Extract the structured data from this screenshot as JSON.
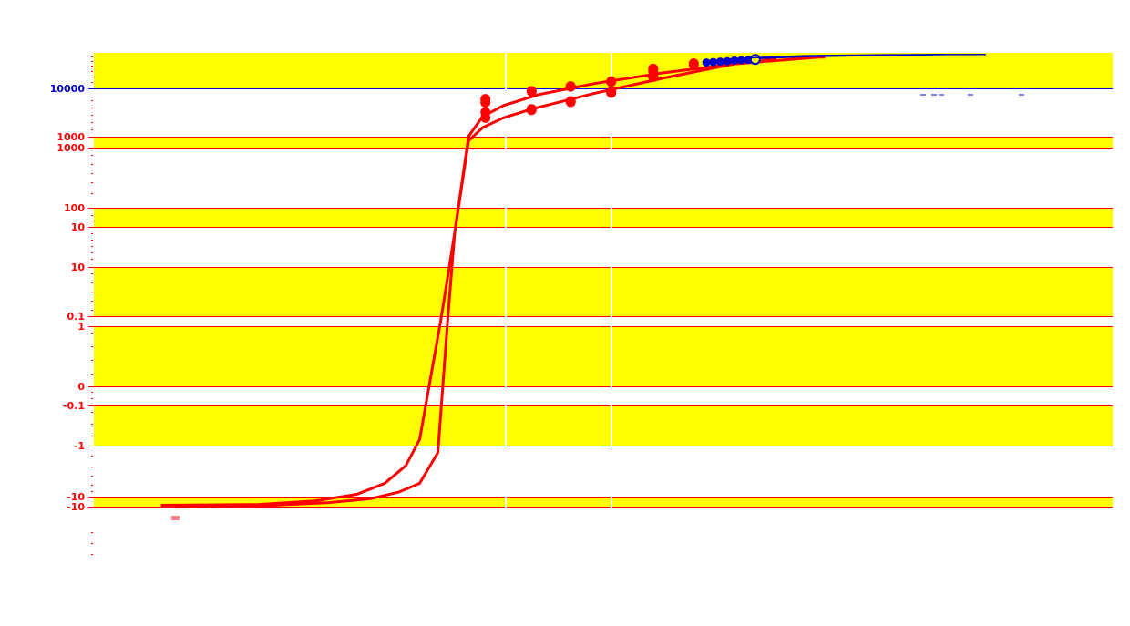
{
  "chart_data": {
    "type": "line",
    "title": "",
    "xlabel": "",
    "ylabel": "",
    "colors": {
      "band": "#ffff00",
      "red": "#ff0000",
      "blue": "#0000cc",
      "highlight_point_fill": "#ffff00",
      "highlight_point_stroke": "#0000cc",
      "divider": "#ffffff"
    },
    "y_tick_labels": [
      {
        "text": "10000",
        "color": "blue"
      },
      {
        "text": "1000",
        "color": "red"
      },
      {
        "text": "1000",
        "color": "red"
      },
      {
        "text": "100",
        "color": "red"
      },
      {
        "text": "10",
        "color": "red"
      },
      {
        "text": "10",
        "color": "red"
      },
      {
        "text": "0.1",
        "color": "red"
      },
      {
        "text": "1",
        "color": "red"
      },
      {
        "text": "0",
        "color": "red"
      },
      {
        "text": "-0.1",
        "color": "red"
      },
      {
        "text": "-1",
        "color": "red"
      },
      {
        "text": "-10",
        "color": "red"
      },
      {
        "text": "-10",
        "color": "red"
      }
    ],
    "bands": [
      {
        "from_label": 0,
        "above": true
      },
      {
        "from_label": 1,
        "to_label": 2
      },
      {
        "from_label": 3,
        "to_label": 4
      },
      {
        "from_label": 5,
        "to_label": 6
      },
      {
        "from_label": 7,
        "to_label": 8
      },
      {
        "from_label": 9,
        "to_label": 10
      },
      {
        "from_label": 11,
        "to_label": 12
      }
    ],
    "series": [
      {
        "color": "red",
        "curve": [
          [
            -2.1,
            -0.62
          ],
          [
            -1.4,
            -0.618
          ],
          [
            -1.0,
            -0.61
          ],
          [
            -0.7,
            -0.595
          ],
          [
            -0.5,
            -0.57
          ],
          [
            -0.35,
            -0.53
          ],
          [
            -0.25,
            -0.47
          ],
          [
            -0.1,
            -0.2
          ],
          [
            0.0,
            0.0
          ],
          [
            0.1,
            0.22
          ],
          [
            0.2,
            0.265
          ],
          [
            0.35,
            0.29
          ],
          [
            0.6,
            0.315
          ],
          [
            1.0,
            0.34
          ],
          [
            1.5,
            0.365
          ],
          [
            2.0,
            0.385
          ],
          [
            2.4,
            0.395
          ],
          [
            2.6,
            0.4
          ],
          [
            2.65,
            0.4
          ]
        ],
        "points": [
          [
            0.22,
            0.305
          ],
          [
            0.22,
            0.297
          ],
          [
            0.22,
            0.275
          ],
          [
            0.22,
            0.262
          ],
          [
            0.55,
            0.323
          ],
          [
            0.55,
            0.322
          ],
          [
            0.83,
            0.334
          ],
          [
            0.83,
            0.333
          ],
          [
            1.12,
            0.345
          ],
          [
            1.12,
            0.344
          ],
          [
            1.42,
            0.374
          ],
          [
            1.42,
            0.368
          ],
          [
            1.71,
            0.386
          ]
        ]
      },
      {
        "color": "red",
        "curve": [
          [
            -2.0,
            -0.624
          ],
          [
            -1.3,
            -0.62
          ],
          [
            -0.9,
            -0.614
          ],
          [
            -0.6,
            -0.605
          ],
          [
            -0.4,
            -0.59
          ],
          [
            -0.25,
            -0.57
          ],
          [
            -0.12,
            -0.5
          ],
          [
            -0.05,
            -0.2
          ],
          [
            0.0,
            0.0
          ],
          [
            0.1,
            0.21
          ],
          [
            0.2,
            0.24
          ],
          [
            0.35,
            0.262
          ],
          [
            0.55,
            0.282
          ],
          [
            1.0,
            0.318
          ],
          [
            1.5,
            0.353
          ],
          [
            2.0,
            0.385
          ],
          [
            2.3,
            0.396
          ]
        ],
        "points": [
          [
            0.55,
            0.282
          ],
          [
            0.55,
            0.28
          ],
          [
            0.83,
            0.3
          ],
          [
            0.83,
            0.298
          ],
          [
            1.12,
            0.321
          ],
          [
            1.12,
            0.319
          ],
          [
            1.42,
            0.357
          ],
          [
            1.42,
            0.355
          ],
          [
            1.71,
            0.383
          ]
        ]
      },
      {
        "color": "blue",
        "curve": [
          [
            1.8,
            0.388
          ],
          [
            2.0,
            0.395
          ],
          [
            2.5,
            0.401
          ],
          [
            3.0,
            0.404
          ],
          [
            3.5,
            0.406
          ],
          [
            3.8,
            0.4065
          ]
        ],
        "points": [
          [
            1.8,
            0.388
          ],
          [
            1.85,
            0.389
          ],
          [
            1.9,
            0.39
          ],
          [
            1.95,
            0.391
          ],
          [
            2.0,
            0.3925
          ],
          [
            2.05,
            0.3935
          ],
          [
            2.1,
            0.394
          ]
        ],
        "highlight_point": [
          2.15,
          0.395
        ]
      },
      {
        "color": "blue",
        "curve": [
          [
            1.8,
            0.389
          ],
          [
            2.0,
            0.397
          ],
          [
            2.5,
            0.4035
          ],
          [
            3.0,
            0.4055
          ],
          [
            3.5,
            0.4065
          ]
        ]
      },
      {
        "color": "yellow",
        "curve": [
          [
            4.3,
            0.407
          ],
          [
            4.5,
            0.4072
          ],
          [
            4.7,
            0.4073
          ]
        ]
      }
    ],
    "grid": false,
    "legend": "none"
  }
}
